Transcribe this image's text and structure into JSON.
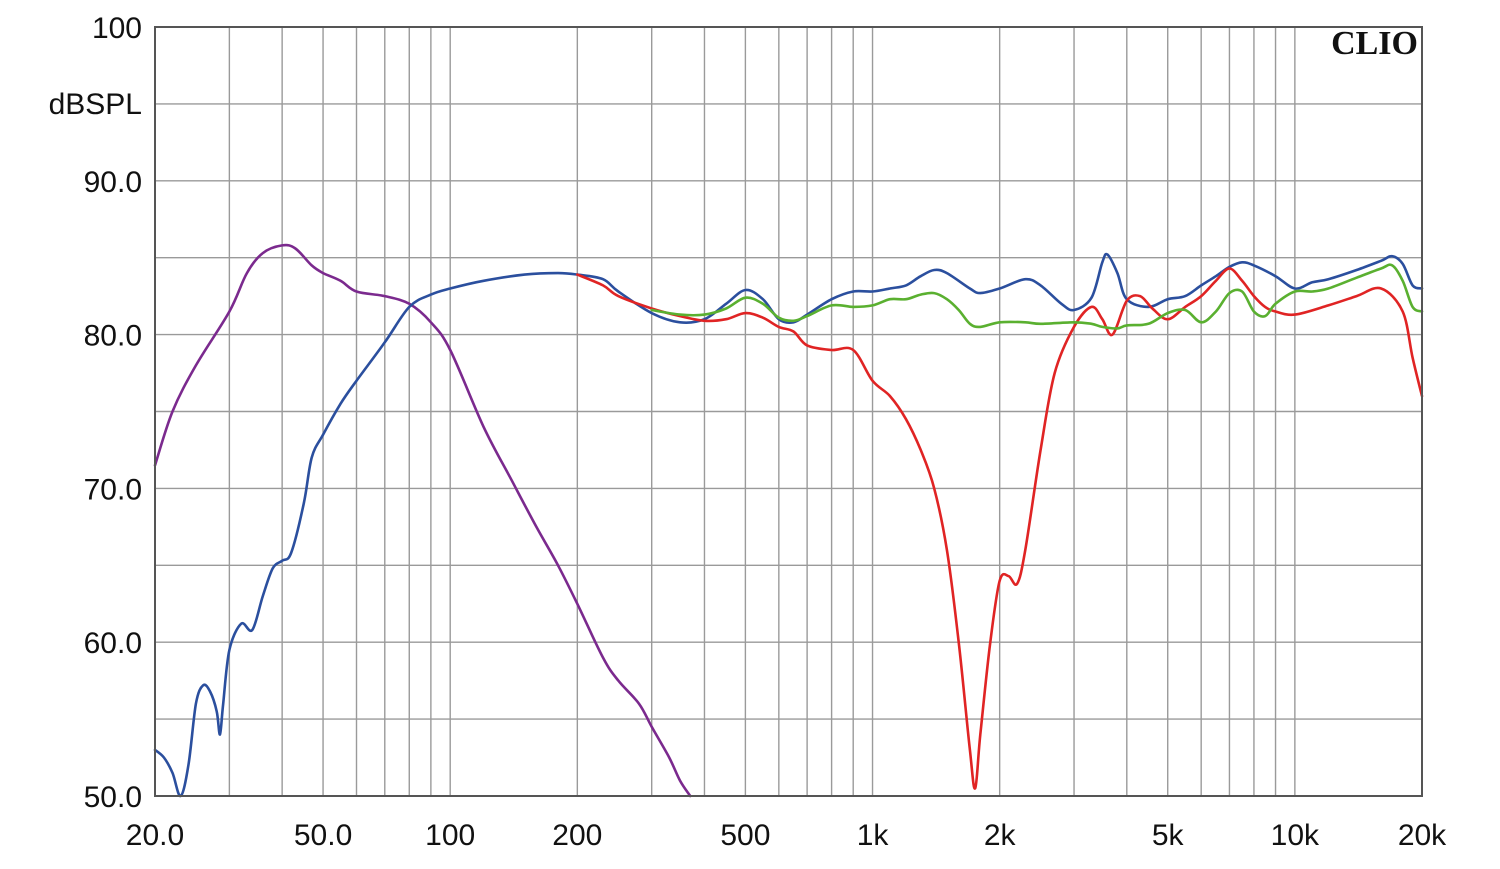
{
  "chart_data": {
    "type": "line",
    "title": "",
    "brand": "CLIO",
    "xlabel": "",
    "ylabel": "dBSPL",
    "x_scale": "log",
    "xlim": [
      20,
      20000
    ],
    "ylim": [
      50,
      100
    ],
    "grid": true,
    "x_ticks": [
      {
        "value": 20,
        "label": "20.0"
      },
      {
        "value": 50,
        "label": "50.0"
      },
      {
        "value": 100,
        "label": "100"
      },
      {
        "value": 200,
        "label": "200"
      },
      {
        "value": 500,
        "label": "500"
      },
      {
        "value": 1000,
        "label": "1k"
      },
      {
        "value": 2000,
        "label": "2k"
      },
      {
        "value": 5000,
        "label": "5k"
      },
      {
        "value": 10000,
        "label": "10k"
      },
      {
        "value": 20000,
        "label": "20k"
      }
    ],
    "y_ticks": [
      {
        "value": 100,
        "label": "100"
      },
      {
        "value": 90,
        "label": "90.0"
      },
      {
        "value": 80,
        "label": "80.0"
      },
      {
        "value": 70,
        "label": "70.0"
      },
      {
        "value": 60,
        "label": "60.0"
      },
      {
        "value": 50,
        "label": "50.0"
      }
    ],
    "series": [
      {
        "color": "#7b2a8e",
        "points": [
          [
            20,
            71.5
          ],
          [
            22,
            75.0
          ],
          [
            25,
            78.0
          ],
          [
            30,
            81.5
          ],
          [
            33,
            84.0
          ],
          [
            36,
            85.3
          ],
          [
            40,
            85.8
          ],
          [
            43,
            85.6
          ],
          [
            47,
            84.5
          ],
          [
            50,
            84.0
          ],
          [
            55,
            83.5
          ],
          [
            60,
            82.8
          ],
          [
            70,
            82.5
          ],
          [
            80,
            82.0
          ],
          [
            90,
            80.8
          ],
          [
            100,
            79.0
          ],
          [
            120,
            74.0
          ],
          [
            140,
            70.5
          ],
          [
            160,
            67.5
          ],
          [
            180,
            65.0
          ],
          [
            200,
            62.5
          ],
          [
            230,
            59.0
          ],
          [
            250,
            57.5
          ],
          [
            280,
            56.0
          ],
          [
            300,
            54.5
          ],
          [
            330,
            52.5
          ],
          [
            350,
            51.0
          ],
          [
            370,
            50.0
          ]
        ]
      },
      {
        "color": "#2b4f9e",
        "points": [
          [
            20,
            53.0
          ],
          [
            21,
            52.5
          ],
          [
            22,
            51.5
          ],
          [
            23,
            50.0
          ],
          [
            24,
            52.0
          ],
          [
            25,
            56.0
          ],
          [
            26,
            57.2
          ],
          [
            27,
            56.8
          ],
          [
            28,
            55.5
          ],
          [
            28.5,
            54.0
          ],
          [
            29,
            56.0
          ],
          [
            30,
            59.5
          ],
          [
            32,
            61.2
          ],
          [
            34,
            60.8
          ],
          [
            36,
            63.0
          ],
          [
            38,
            64.8
          ],
          [
            40,
            65.3
          ],
          [
            42,
            65.8
          ],
          [
            45,
            69.0
          ],
          [
            47,
            72.0
          ],
          [
            50,
            73.5
          ],
          [
            55,
            75.5
          ],
          [
            60,
            77.0
          ],
          [
            70,
            79.5
          ],
          [
            80,
            81.8
          ],
          [
            90,
            82.6
          ],
          [
            100,
            83.0
          ],
          [
            120,
            83.5
          ],
          [
            150,
            83.9
          ],
          [
            180,
            84.0
          ],
          [
            200,
            83.9
          ],
          [
            230,
            83.6
          ],
          [
            250,
            82.8
          ],
          [
            300,
            81.4
          ],
          [
            350,
            80.8
          ],
          [
            400,
            81.0
          ],
          [
            450,
            82.0
          ],
          [
            500,
            82.9
          ],
          [
            550,
            82.3
          ],
          [
            600,
            81.0
          ],
          [
            650,
            80.8
          ],
          [
            700,
            81.3
          ],
          [
            800,
            82.3
          ],
          [
            900,
            82.8
          ],
          [
            1000,
            82.8
          ],
          [
            1100,
            83.0
          ],
          [
            1200,
            83.2
          ],
          [
            1300,
            83.8
          ],
          [
            1400,
            84.2
          ],
          [
            1500,
            84.0
          ],
          [
            1700,
            83.0
          ],
          [
            1800,
            82.7
          ],
          [
            2000,
            83.0
          ],
          [
            2300,
            83.6
          ],
          [
            2500,
            83.2
          ],
          [
            2800,
            82.0
          ],
          [
            3000,
            81.6
          ],
          [
            3300,
            82.4
          ],
          [
            3500,
            84.7
          ],
          [
            3600,
            85.2
          ],
          [
            3800,
            84.0
          ],
          [
            4000,
            82.3
          ],
          [
            4500,
            81.8
          ],
          [
            5000,
            82.3
          ],
          [
            5500,
            82.5
          ],
          [
            6000,
            83.2
          ],
          [
            6500,
            83.8
          ],
          [
            7000,
            84.4
          ],
          [
            7500,
            84.7
          ],
          [
            8000,
            84.5
          ],
          [
            9000,
            83.8
          ],
          [
            10000,
            83.0
          ],
          [
            11000,
            83.4
          ],
          [
            12000,
            83.6
          ],
          [
            14000,
            84.2
          ],
          [
            16000,
            84.8
          ],
          [
            17000,
            85.1
          ],
          [
            18000,
            84.6
          ],
          [
            19000,
            83.2
          ],
          [
            20000,
            83.0
          ]
        ]
      },
      {
        "color": "#e02424",
        "points": [
          [
            200,
            83.9
          ],
          [
            230,
            83.2
          ],
          [
            250,
            82.5
          ],
          [
            300,
            81.7
          ],
          [
            350,
            81.2
          ],
          [
            400,
            80.9
          ],
          [
            450,
            81.0
          ],
          [
            500,
            81.4
          ],
          [
            550,
            81.1
          ],
          [
            600,
            80.5
          ],
          [
            650,
            80.2
          ],
          [
            700,
            79.3
          ],
          [
            800,
            79.0
          ],
          [
            900,
            79.0
          ],
          [
            1000,
            77.0
          ],
          [
            1100,
            76.0
          ],
          [
            1200,
            74.5
          ],
          [
            1300,
            72.5
          ],
          [
            1400,
            70.0
          ],
          [
            1500,
            66.0
          ],
          [
            1600,
            60.0
          ],
          [
            1700,
            53.0
          ],
          [
            1750,
            50.5
          ],
          [
            1800,
            54.0
          ],
          [
            1900,
            60.0
          ],
          [
            2000,
            64.0
          ],
          [
            2100,
            64.3
          ],
          [
            2200,
            63.8
          ],
          [
            2300,
            66.0
          ],
          [
            2500,
            72.5
          ],
          [
            2700,
            77.5
          ],
          [
            3000,
            80.5
          ],
          [
            3300,
            81.8
          ],
          [
            3500,
            81.0
          ],
          [
            3700,
            80.0
          ],
          [
            4000,
            82.2
          ],
          [
            4300,
            82.5
          ],
          [
            4600,
            81.7
          ],
          [
            5000,
            81.0
          ],
          [
            5500,
            81.8
          ],
          [
            6000,
            82.5
          ],
          [
            6500,
            83.5
          ],
          [
            7000,
            84.3
          ],
          [
            7500,
            83.5
          ],
          [
            8000,
            82.5
          ],
          [
            8500,
            81.8
          ],
          [
            9000,
            81.5
          ],
          [
            10000,
            81.3
          ],
          [
            12000,
            81.9
          ],
          [
            14000,
            82.5
          ],
          [
            16000,
            83.0
          ],
          [
            18000,
            81.5
          ],
          [
            19000,
            78.5
          ],
          [
            20000,
            76.0
          ]
        ]
      },
      {
        "color": "#5ab030",
        "points": [
          [
            300,
            81.6
          ],
          [
            350,
            81.3
          ],
          [
            400,
            81.3
          ],
          [
            450,
            81.7
          ],
          [
            500,
            82.4
          ],
          [
            550,
            82.0
          ],
          [
            600,
            81.1
          ],
          [
            650,
            80.9
          ],
          [
            700,
            81.2
          ],
          [
            800,
            81.9
          ],
          [
            900,
            81.8
          ],
          [
            1000,
            81.9
          ],
          [
            1100,
            82.3
          ],
          [
            1200,
            82.3
          ],
          [
            1300,
            82.6
          ],
          [
            1400,
            82.7
          ],
          [
            1500,
            82.3
          ],
          [
            1600,
            81.6
          ],
          [
            1700,
            80.7
          ],
          [
            1800,
            80.5
          ],
          [
            2000,
            80.8
          ],
          [
            2300,
            80.8
          ],
          [
            2500,
            80.7
          ],
          [
            3000,
            80.8
          ],
          [
            3300,
            80.7
          ],
          [
            3500,
            80.5
          ],
          [
            3800,
            80.4
          ],
          [
            4000,
            80.6
          ],
          [
            4500,
            80.7
          ],
          [
            5000,
            81.4
          ],
          [
            5500,
            81.6
          ],
          [
            6000,
            80.8
          ],
          [
            6500,
            81.5
          ],
          [
            7000,
            82.7
          ],
          [
            7500,
            82.8
          ],
          [
            8000,
            81.5
          ],
          [
            8500,
            81.2
          ],
          [
            9000,
            82.0
          ],
          [
            10000,
            82.8
          ],
          [
            11000,
            82.8
          ],
          [
            12000,
            83.0
          ],
          [
            14000,
            83.7
          ],
          [
            16000,
            84.3
          ],
          [
            17000,
            84.5
          ],
          [
            18000,
            83.5
          ],
          [
            19000,
            81.8
          ],
          [
            20000,
            81.5
          ]
        ]
      }
    ]
  }
}
